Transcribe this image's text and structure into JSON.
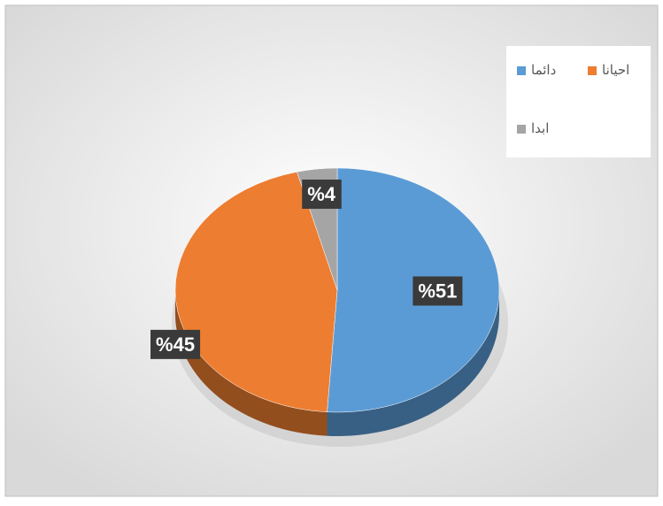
{
  "chart_data": {
    "type": "pie",
    "categories": [
      "دائما",
      "احيانا",
      "ابدا"
    ],
    "values": [
      51,
      45,
      4
    ],
    "value_labels": [
      "%51",
      "%45",
      "%4"
    ],
    "colors": [
      "#5b9bd5",
      "#ed7d31",
      "#a5a5a5"
    ],
    "legend": "top-right"
  }
}
